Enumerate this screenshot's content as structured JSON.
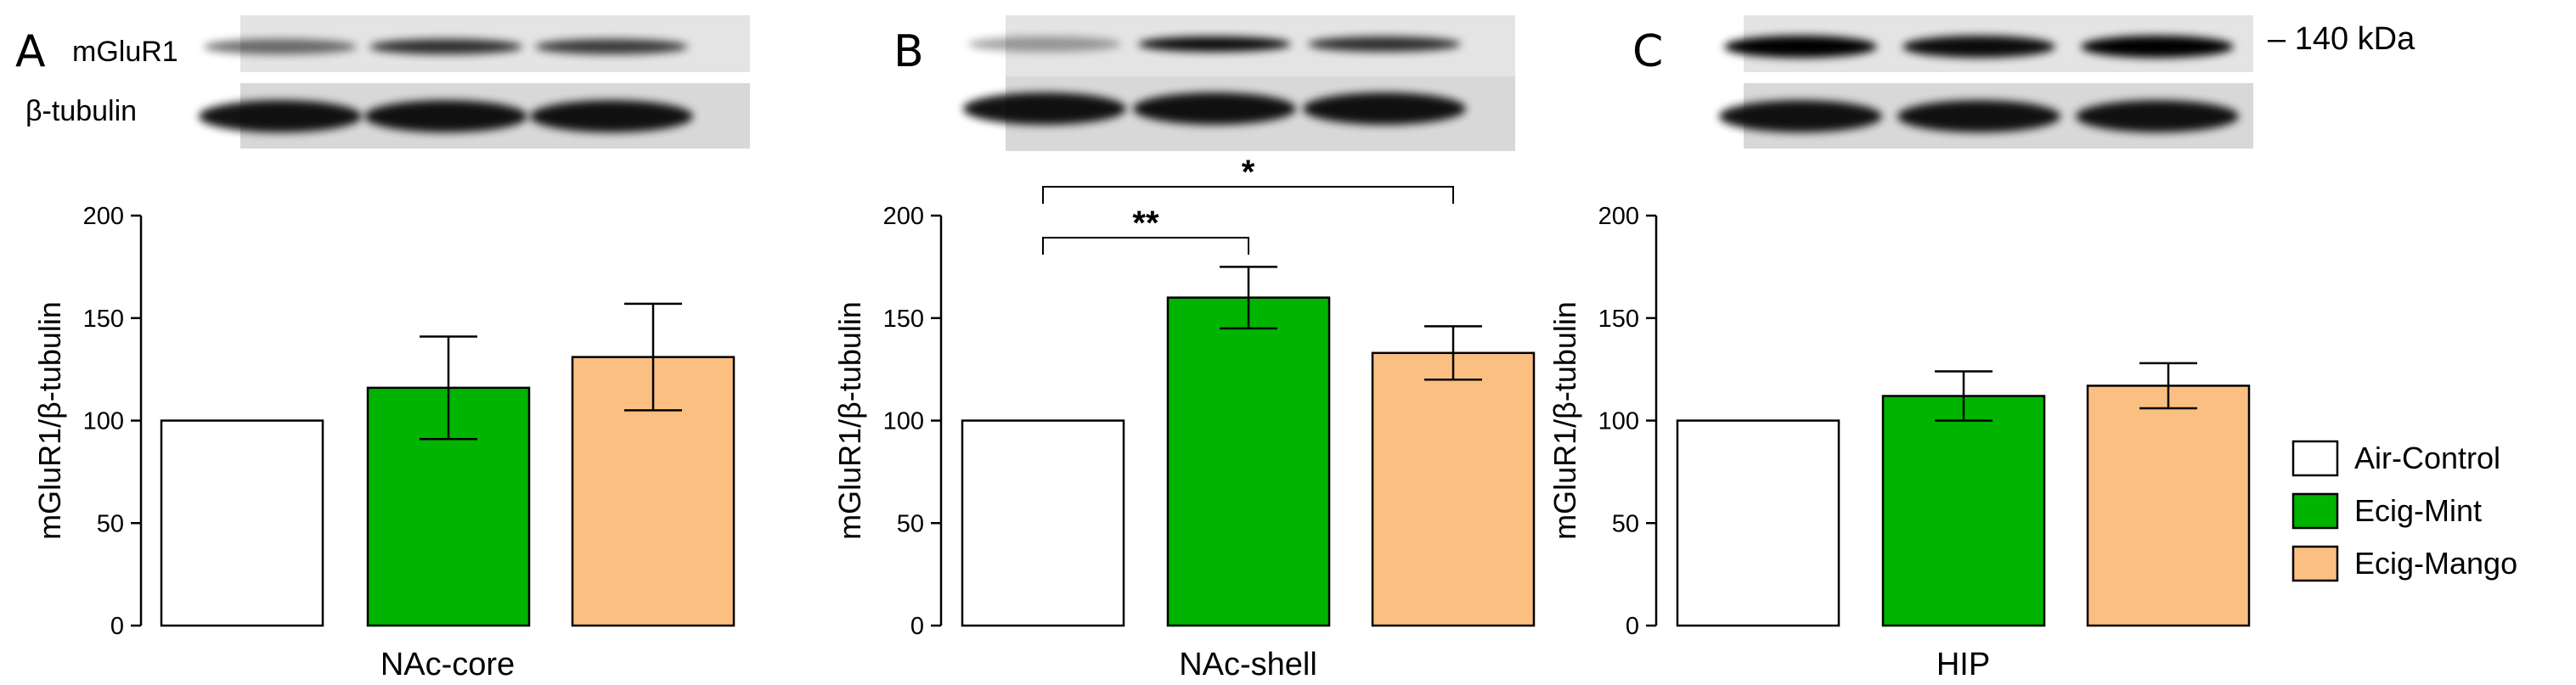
{
  "colors": {
    "air_control": "#ffffff",
    "ecig_mint": "#00b400",
    "ecig_mango": "#fbbf82",
    "axis": "#000000"
  },
  "blot_labels": {
    "target": "mGluR1",
    "loading": "β-tubulin",
    "marker": "– 140 kDa"
  },
  "legend": {
    "items": [
      "Air-Control",
      "Ecig-Mint",
      "Ecig-Mango"
    ]
  },
  "chart_data": [
    {
      "type": "bar",
      "panel": "A",
      "xlabel": "NAc-core",
      "ylabel": "mGluR1/β-tubulin",
      "ylim": [
        0,
        200
      ],
      "yticks": [
        0,
        50,
        100,
        150,
        200
      ],
      "categories": [
        "Air-Control",
        "Ecig-Mint",
        "Ecig-Mango"
      ],
      "values": [
        100,
        116,
        131
      ],
      "errors": [
        0,
        25,
        26
      ],
      "significance": []
    },
    {
      "type": "bar",
      "panel": "B",
      "xlabel": "NAc-shell",
      "ylabel": "mGluR1/β-tubulin",
      "ylim": [
        0,
        200
      ],
      "yticks": [
        0,
        50,
        100,
        150,
        200
      ],
      "categories": [
        "Air-Control",
        "Ecig-Mint",
        "Ecig-Mango"
      ],
      "values": [
        100,
        160,
        133
      ],
      "errors": [
        0,
        15,
        13
      ],
      "significance": [
        {
          "from": 0,
          "to": 1,
          "label": "**"
        },
        {
          "from": 0,
          "to": 2,
          "label": "*"
        }
      ]
    },
    {
      "type": "bar",
      "panel": "C",
      "xlabel": "HIP",
      "ylabel": "mGluR1/β-tubulin",
      "ylim": [
        0,
        200
      ],
      "yticks": [
        0,
        50,
        100,
        150,
        200
      ],
      "categories": [
        "Air-Control",
        "Ecig-Mint",
        "Ecig-Mango"
      ],
      "values": [
        100,
        112,
        117
      ],
      "errors": [
        0,
        12,
        11
      ],
      "significance": []
    }
  ]
}
